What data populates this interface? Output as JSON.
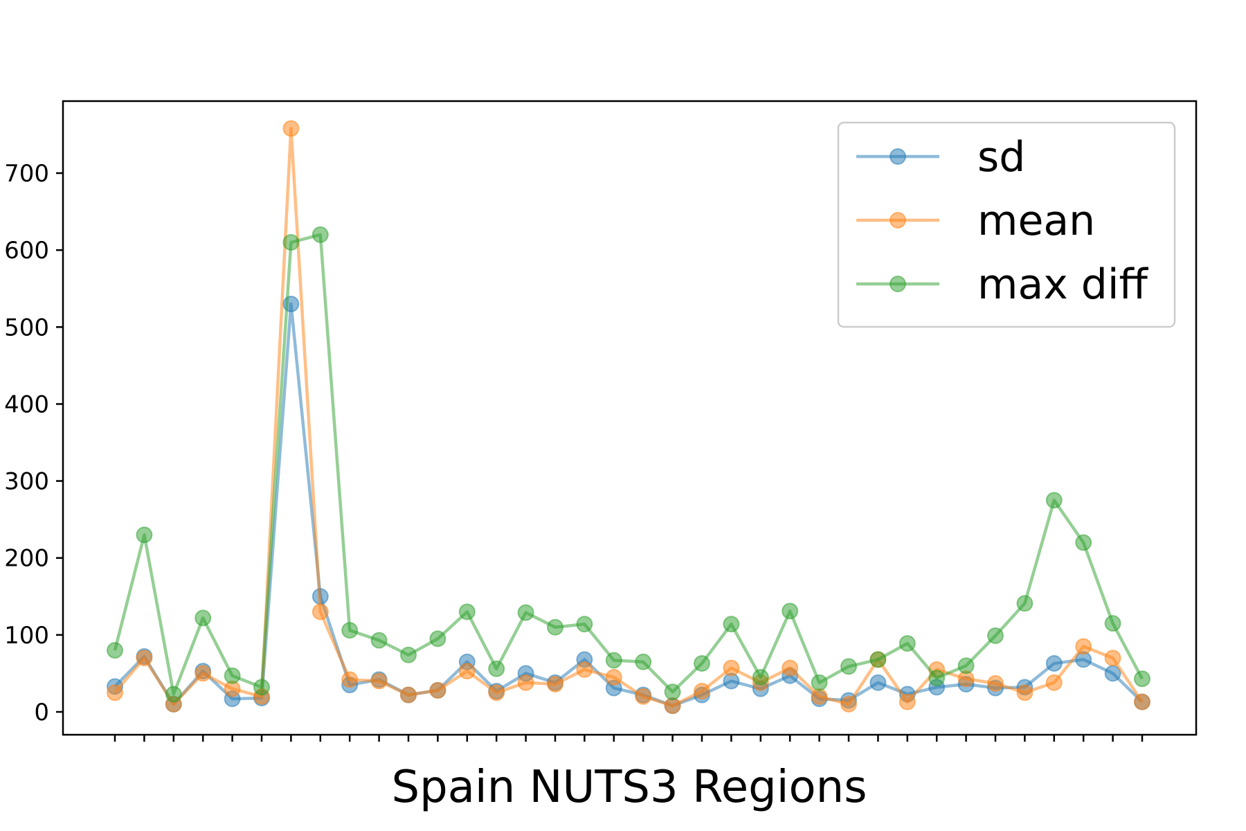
{
  "chart_data": {
    "type": "line",
    "xlabel": "Spain NUTS3 Regions",
    "ylabel": "",
    "ylim": [
      -30,
      760
    ],
    "y_ticks": [
      0,
      100,
      200,
      300,
      400,
      500,
      600,
      700
    ],
    "y_tick_labels": [
      "0",
      "100",
      "200",
      "300",
      "400",
      "500",
      "600",
      "700"
    ],
    "x_count": 36,
    "grid": false,
    "legend_position": "top-right",
    "series": [
      {
        "name": "sd",
        "color": "#1f77b4",
        "values": [
          33,
          72,
          10,
          53,
          17,
          18,
          530,
          150,
          35,
          42,
          22,
          28,
          65,
          27,
          50,
          38,
          68,
          31,
          22,
          8,
          22,
          40,
          30,
          47,
          17,
          15,
          38,
          23,
          32,
          36,
          31,
          32,
          63,
          68,
          50,
          13
        ]
      },
      {
        "name": "mean",
        "color": "#ff7f0e",
        "values": [
          25,
          70,
          10,
          50,
          30,
          20,
          758,
          130,
          42,
          40,
          22,
          28,
          53,
          25,
          38,
          36,
          55,
          45,
          20,
          8,
          27,
          57,
          38,
          57,
          20,
          10,
          68,
          13,
          55,
          43,
          37,
          25,
          38,
          85,
          70,
          13
        ]
      },
      {
        "name": "max diff",
        "color": "#2ca02c",
        "values": [
          80,
          230,
          23,
          122,
          47,
          32,
          610,
          620,
          106,
          93,
          74,
          95,
          130,
          56,
          129,
          110,
          114,
          67,
          65,
          26,
          63,
          114,
          45,
          131,
          38,
          59,
          68,
          89,
          44,
          60,
          99,
          141,
          275,
          220,
          115,
          43
        ]
      }
    ]
  }
}
